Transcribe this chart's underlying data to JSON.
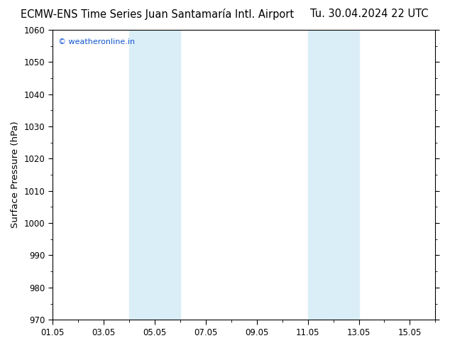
{
  "title_left": "ECMW-ENS Time Series Juan Santamaría Intl. Airport",
  "title_right": "Tu. 30.04.2024 22 UTC",
  "ylabel": "Surface Pressure (hPa)",
  "ylim": [
    970,
    1060
  ],
  "ytick_major": 10,
  "x_tick_labels": [
    "01.05",
    "03.05",
    "05.05",
    "07.05",
    "09.05",
    "11.05",
    "13.05",
    "15.05"
  ],
  "x_tick_positions": [
    1,
    3,
    5,
    7,
    9,
    11,
    13,
    15
  ],
  "xlim": [
    1,
    16
  ],
  "shade_bands": [
    {
      "xmin": 4.0,
      "xmax": 6.0,
      "color": "#daeef7"
    },
    {
      "xmin": 11.0,
      "xmax": 13.0,
      "color": "#daeef7"
    }
  ],
  "watermark": "© weatheronline.in",
  "watermark_color": "#1155cc",
  "bg_color": "#ffffff",
  "plot_bg_color": "#ffffff",
  "title_fontsize": 10.5,
  "axis_label_fontsize": 9.5,
  "tick_fontsize": 8.5
}
